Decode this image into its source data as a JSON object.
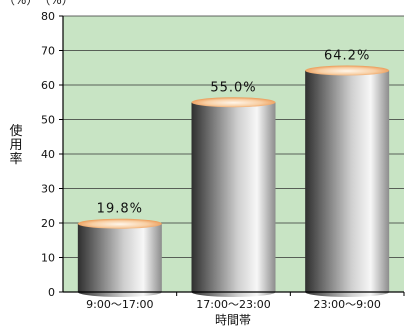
{
  "top_note": "（%）　（%）",
  "chart_data": {
    "type": "bar",
    "categories": [
      "9:00～17:00",
      "17:00～23:00",
      "23:00～9:00"
    ],
    "values": [
      19.8,
      55.0,
      64.2
    ],
    "value_labels": [
      "19.8%",
      "55.0%",
      "64.2%"
    ],
    "title": "",
    "xlabel": "時間帯",
    "ylabel": "使用率",
    "ylim": [
      0,
      80
    ],
    "yticks": [
      0,
      10,
      20,
      30,
      40,
      50,
      60,
      70,
      80
    ],
    "grid": true,
    "legend": "none",
    "colors": {
      "background": "#c8e4c4",
      "cylinder_dark": "#3a3a3a",
      "cylinder_light": "#f4f4f4",
      "top_orange": "#f0a060",
      "top_light": "#fdf2e4"
    }
  }
}
